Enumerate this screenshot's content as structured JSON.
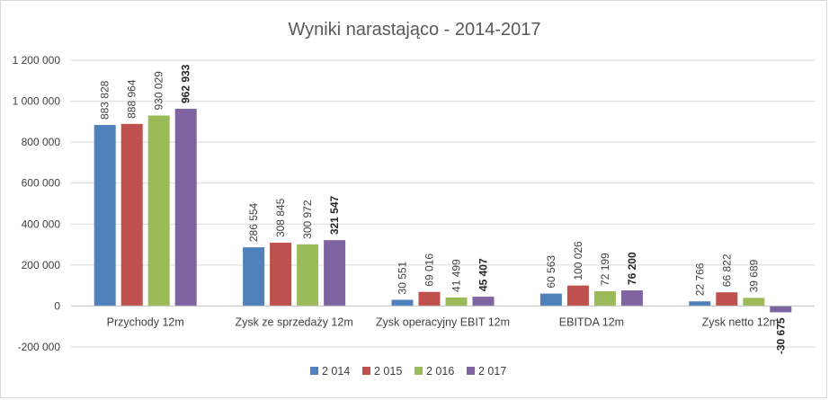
{
  "chart_data": {
    "type": "bar",
    "title": "Wyniki narastająco - 2014-2017",
    "categories": [
      "Przychody 12m",
      "Zysk ze sprzedaży 12m",
      "Zysk operacyjny EBIT 12m",
      "EBITDA 12m",
      "Zysk netto 12m"
    ],
    "series": [
      {
        "name": "2 014",
        "color": "#4F81BD",
        "values": [
          883828,
          286554,
          30551,
          60563,
          22766
        ],
        "labels": [
          "883 828",
          "286 554",
          "30 551",
          "60 563",
          "22 766"
        ]
      },
      {
        "name": "2 015",
        "color": "#C0504D",
        "values": [
          888964,
          308845,
          69016,
          100026,
          66822
        ],
        "labels": [
          "888 964",
          "308 845",
          "69 016",
          "100 026",
          "66 822"
        ]
      },
      {
        "name": "2 016",
        "color": "#9BBB59",
        "values": [
          930029,
          300972,
          41499,
          72199,
          39689
        ],
        "labels": [
          "930 029",
          "300 972",
          "41 499",
          "72 199",
          "39 689"
        ]
      },
      {
        "name": "2 017",
        "color": "#8064A2",
        "values": [
          962933,
          321547,
          45407,
          76200,
          -30675
        ],
        "labels": [
          "962 933",
          "321 547",
          "45 407",
          "76 200",
          "-30 675"
        ],
        "bold_labels": true
      }
    ],
    "ylim": [
      -200000,
      1200000
    ],
    "yticks": [
      -200000,
      0,
      200000,
      400000,
      600000,
      800000,
      1000000,
      1200000
    ],
    "ytick_labels": [
      "-200 000",
      "0",
      "200 000",
      "400 000",
      "600 000",
      "800 000",
      "1 000 000",
      "1 200 000"
    ],
    "grid": true,
    "legend_position": "bottom"
  }
}
